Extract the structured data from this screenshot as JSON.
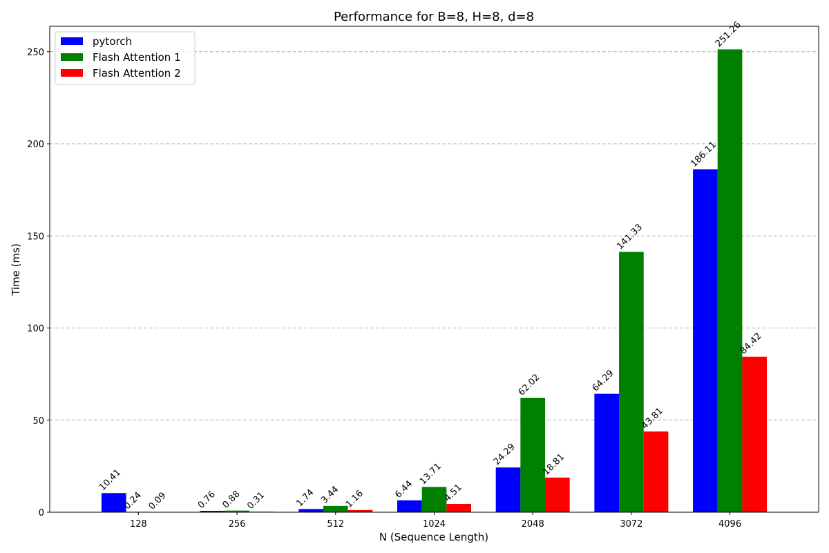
{
  "chart_data": {
    "type": "bar",
    "title": "Performance for B=8, H=8, d=8",
    "xlabel": "N (Sequence Length)",
    "ylabel": "Time (ms)",
    "categories": [
      "128",
      "256",
      "512",
      "1024",
      "2048",
      "3072",
      "4096"
    ],
    "series": [
      {
        "name": "pytorch",
        "color": "#0000ff",
        "values": [
          10.41,
          0.76,
          1.74,
          6.44,
          24.29,
          64.29,
          186.11
        ],
        "labels": [
          "10.41",
          "0.76",
          "1.74",
          "6.44",
          "24.29",
          "64.29",
          "186.11"
        ]
      },
      {
        "name": "Flash Attention 1",
        "color": "#008000",
        "values": [
          0.24,
          0.88,
          3.44,
          13.71,
          62.02,
          141.33,
          251.26
        ],
        "labels": [
          "0.24",
          "0.88",
          "3.44",
          "13.71",
          "62.02",
          "141.33",
          "251.26"
        ]
      },
      {
        "name": "Flash Attention 2",
        "color": "#ff0000",
        "values": [
          0.09,
          0.31,
          1.16,
          4.51,
          18.81,
          43.81,
          84.42
        ],
        "labels": [
          "0.09",
          "0.31",
          "1.16",
          "4.51",
          "18.81",
          "43.81",
          "84.42"
        ]
      }
    ],
    "ylim": [
      0,
      263.8
    ],
    "yticks": [
      0,
      50,
      100,
      150,
      200,
      250
    ],
    "grid": "y-dashed",
    "legend": "top-left"
  }
}
